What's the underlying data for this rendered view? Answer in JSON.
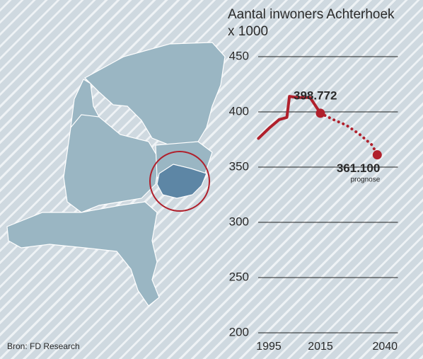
{
  "chart_data": {
    "type": "line",
    "title": "Aantal inwoners Achterhoek",
    "subtitle": "x 1000",
    "source": "Bron: FD Research",
    "annotation": "prognose",
    "xlim": [
      1990,
      2045
    ],
    "xticks": [
      1995,
      2015,
      2040
    ],
    "ylim": [
      200,
      450
    ],
    "yticks": [
      200,
      250,
      300,
      350,
      400,
      450
    ],
    "grid": true,
    "series": [
      {
        "style": "solid",
        "color": "#b0202c",
        "x": [
          1991,
          1995,
          1999,
          2002,
          2003,
          2006,
          2011,
          2015
        ],
        "values": [
          376,
          385,
          393,
          395,
          414,
          413,
          413,
          398.772
        ],
        "value_labels": [
          null,
          null,
          null,
          null,
          null,
          null,
          null,
          "398.772"
        ]
      },
      {
        "style": "dotted",
        "color": "#b0202c",
        "x": [
          2015,
          2020,
          2025,
          2030,
          2035,
          2037
        ],
        "values": [
          398.772,
          393,
          388,
          380,
          370,
          361.1
        ],
        "value_labels": [
          null,
          null,
          null,
          null,
          null,
          "361.100"
        ]
      }
    ]
  }
}
